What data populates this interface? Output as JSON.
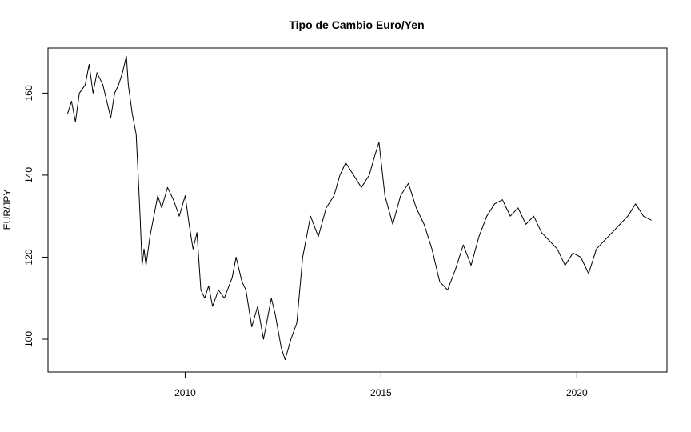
{
  "chart_data": {
    "type": "line",
    "title": "Tipo de Cambio Euro/Yen",
    "xlabel": "",
    "ylabel": "EUR/JPY",
    "xlim": [
      2006.5,
      2022.3
    ],
    "ylim": [
      92,
      171
    ],
    "x_ticks": [
      2010,
      2015,
      2020
    ],
    "y_ticks": [
      100,
      120,
      140,
      160
    ],
    "grid": false,
    "legend": "none",
    "line_color": "#000000",
    "series": [
      {
        "x": [
          2007.0,
          2007.1,
          2007.2,
          2007.3,
          2007.45,
          2007.55,
          2007.65,
          2007.75,
          2007.9,
          2008.0,
          2008.1,
          2008.2,
          2008.3,
          2008.4,
          2008.5,
          2008.55,
          2008.65,
          2008.75,
          2008.8,
          2008.85,
          2008.9,
          2008.95,
          2009.0,
          2009.1,
          2009.2,
          2009.3,
          2009.4,
          2009.55,
          2009.7,
          2009.85,
          2010.0,
          2010.1,
          2010.2,
          2010.3,
          2010.4,
          2010.5,
          2010.6,
          2010.7,
          2010.85,
          2011.0,
          2011.2,
          2011.3,
          2011.45,
          2011.55,
          2011.7,
          2011.85,
          2012.0,
          2012.1,
          2012.2,
          2012.3,
          2012.45,
          2012.55,
          2012.7,
          2012.85,
          2013.0,
          2013.2,
          2013.4,
          2013.6,
          2013.8,
          2013.95,
          2014.1,
          2014.3,
          2014.5,
          2014.7,
          2014.85,
          2014.95,
          2015.1,
          2015.3,
          2015.5,
          2015.7,
          2015.9,
          2016.1,
          2016.3,
          2016.5,
          2016.7,
          2016.9,
          2017.1,
          2017.3,
          2017.5,
          2017.7,
          2017.9,
          2018.1,
          2018.3,
          2018.5,
          2018.7,
          2018.9,
          2019.1,
          2019.3,
          2019.5,
          2019.7,
          2019.9,
          2020.1,
          2020.3,
          2020.5,
          2020.7,
          2020.9,
          2021.1,
          2021.3,
          2021.5,
          2021.7,
          2021.9
        ],
        "y": [
          155,
          158,
          153,
          160,
          162,
          167,
          160,
          165,
          162,
          158,
          154,
          160,
          162,
          165,
          169,
          162,
          155,
          150,
          140,
          130,
          118,
          122,
          118,
          125,
          130,
          135,
          132,
          137,
          134,
          130,
          135,
          128,
          122,
          126,
          112,
          110,
          113,
          108,
          112,
          110,
          115,
          120,
          114,
          112,
          103,
          108,
          100,
          105,
          110,
          106,
          98,
          95,
          100,
          104,
          120,
          130,
          125,
          132,
          135,
          140,
          143,
          140,
          137,
          140,
          145,
          148,
          135,
          128,
          135,
          138,
          132,
          128,
          122,
          114,
          112,
          117,
          123,
          118,
          125,
          130,
          133,
          134,
          130,
          132,
          128,
          130,
          126,
          124,
          122,
          118,
          121,
          120,
          116,
          122,
          124,
          126,
          128,
          130,
          133,
          130,
          129
        ]
      }
    ]
  }
}
